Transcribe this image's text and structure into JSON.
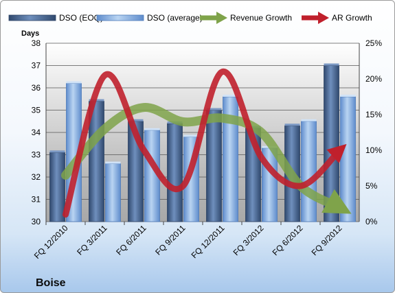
{
  "chart_data": {
    "type": "bar",
    "company": "Boise",
    "categories": [
      "FQ 12/2010",
      "FQ 3/2011",
      "FQ 6/2011",
      "FQ 9/2011",
      "FQ 12/2011",
      "FQ 3/2012",
      "FQ 6/2012",
      "FQ 9/2012"
    ],
    "series": [
      {
        "name": "DSO (EOQ)",
        "axis": "left",
        "kind": "bar",
        "color": "#4f6d9a",
        "values": [
          33.1,
          35.4,
          34.5,
          34.4,
          35.0,
          34.2,
          34.3,
          37.0
        ]
      },
      {
        "name": "DSO (average)",
        "axis": "left",
        "kind": "bar",
        "color": "#86aee0",
        "values": [
          36.2,
          32.6,
          34.1,
          33.8,
          35.6,
          33.3,
          34.5,
          35.6
        ]
      },
      {
        "name": "Revenue Growth",
        "axis": "right",
        "kind": "line",
        "color": "#7fa34a",
        "values": [
          6.5,
          13.0,
          16.0,
          14.0,
          14.5,
          12.5,
          5.0,
          2.0
        ]
      },
      {
        "name": "AR Growth",
        "axis": "right",
        "kind": "line",
        "color": "#c0202c",
        "values": [
          1.0,
          20.5,
          10.0,
          5.0,
          21.0,
          9.0,
          5.0,
          10.0
        ]
      }
    ],
    "ylabel": "Days",
    "ylim": [
      30,
      38
    ],
    "yticks": [
      "30",
      "31",
      "32",
      "33",
      "34",
      "35",
      "36",
      "37",
      "38"
    ],
    "y2lim": [
      0,
      25
    ],
    "y2ticks": [
      "0%",
      "5%",
      "10%",
      "15%",
      "20%",
      "25%"
    ],
    "legend": "top",
    "grid": true,
    "plot_background": "gradient-gray"
  }
}
